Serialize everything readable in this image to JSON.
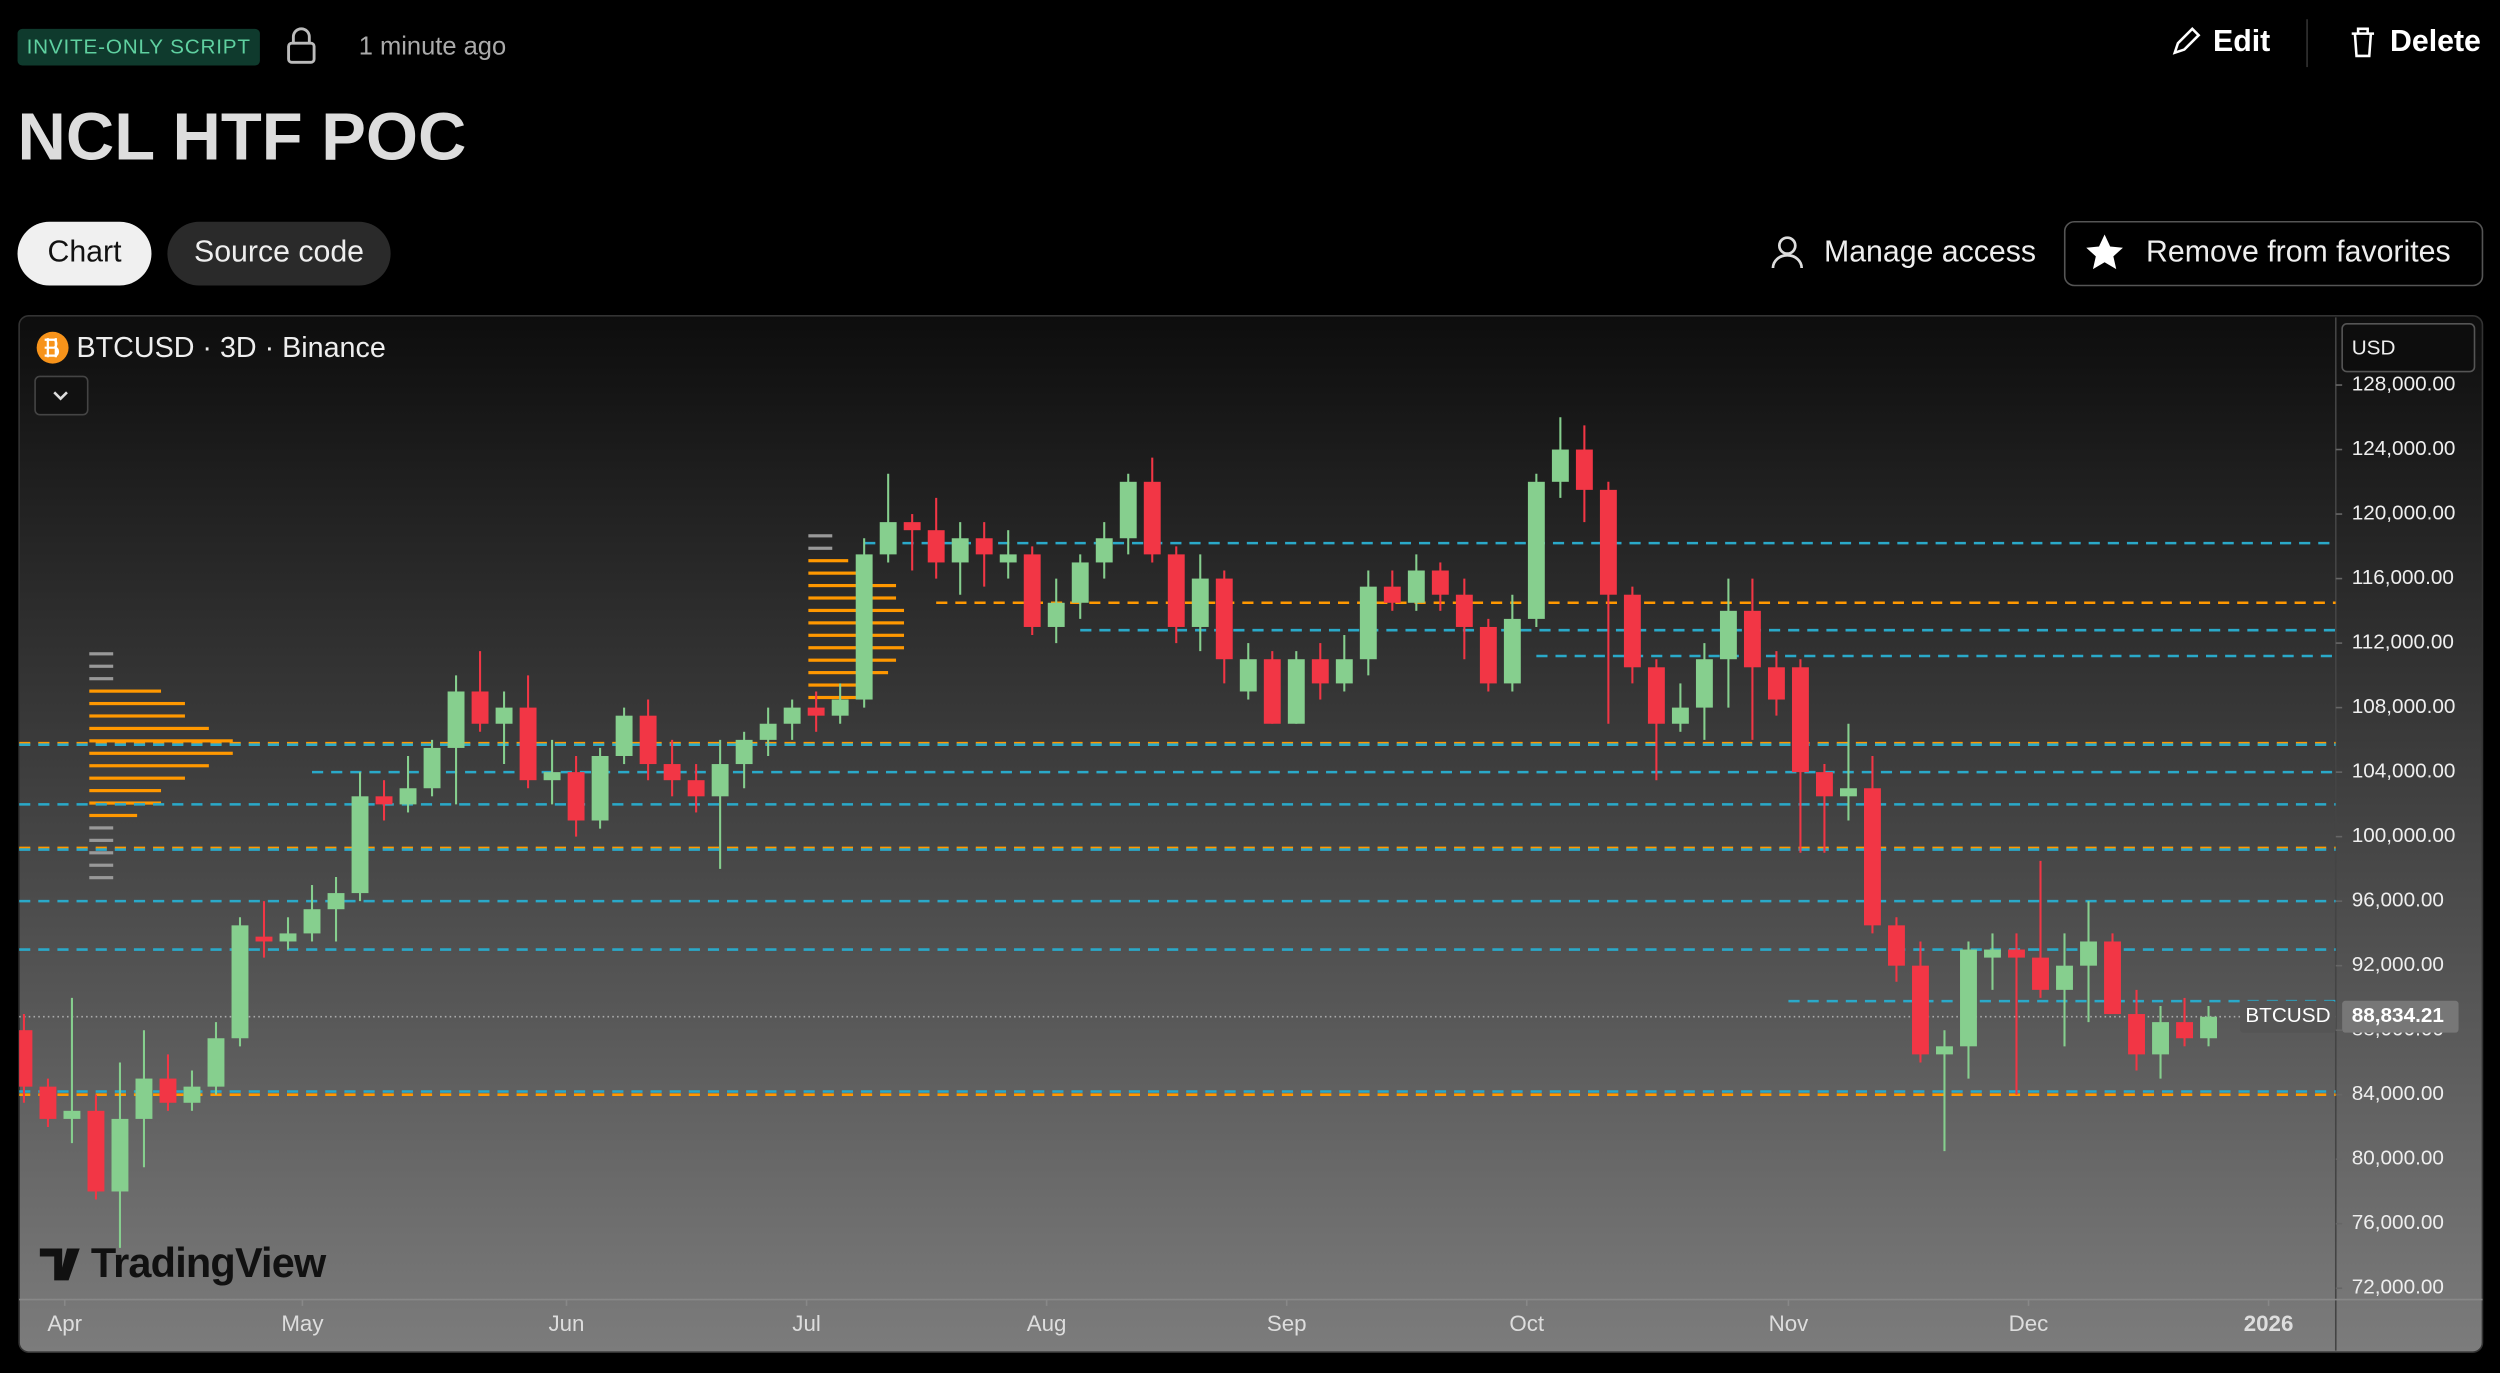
{
  "header": {
    "badge": "INVITE-ONLY SCRIPT",
    "time": "1 minute ago",
    "edit": "Edit",
    "delete": "Delete",
    "title": "NCL HTF POC"
  },
  "tabs": {
    "chart": "Chart",
    "source": "Source code"
  },
  "actions": {
    "manage": "Manage access",
    "favorite": "Remove from favorites"
  },
  "chart_data": {
    "type": "candlestick",
    "symbol": "BTCUSD · 3D · Binance",
    "currency": "USD",
    "watermark": "TradingView",
    "up_color": "#86cf8e",
    "down_color": "#f23645",
    "x": [
      0,
      1,
      2,
      3,
      4,
      5,
      6,
      7,
      8,
      9,
      10,
      11,
      12,
      13,
      14,
      15,
      16,
      17,
      18,
      19,
      20,
      21,
      22,
      23,
      24,
      25,
      26,
      27,
      28,
      29,
      30,
      31,
      32,
      33,
      34,
      35,
      36,
      37,
      38,
      39,
      40,
      41,
      42,
      43,
      44,
      45,
      46,
      47,
      48,
      49,
      50,
      51,
      52,
      53,
      54,
      55,
      56,
      57,
      58,
      59,
      60,
      61,
      62,
      63,
      64,
      65,
      66,
      67,
      68,
      69,
      70,
      71,
      72,
      73,
      74,
      75,
      76,
      77,
      78,
      79,
      80,
      81,
      82,
      83,
      84,
      85,
      86,
      87,
      88,
      89,
      90,
      91
    ],
    "open": [
      88000,
      84500,
      82500,
      83000,
      78000,
      82500,
      85000,
      83500,
      84500,
      87500,
      93800,
      93500,
      94000,
      95500,
      96500,
      102500,
      102000,
      103000,
      105500,
      109000,
      107000,
      108000,
      103500,
      104000,
      101000,
      105000,
      107500,
      104500,
      103500,
      102500,
      104500,
      106000,
      107000,
      108000,
      107500,
      108500,
      117500,
      119500,
      119000,
      117000,
      118500,
      117000,
      117500,
      113000,
      114500,
      117000,
      118500,
      122000,
      117500,
      113000,
      116000,
      109000,
      111000,
      107000,
      111000,
      109500,
      111000,
      115500,
      114500,
      116500,
      115000,
      113000,
      109500,
      113500,
      122000,
      124000,
      121500,
      115000,
      110500,
      107000,
      108000,
      111000,
      114000,
      110500,
      110500,
      104000,
      102500,
      103000,
      94500,
      92000,
      86500,
      87000,
      92500,
      93000,
      92500,
      90500,
      92000,
      93500,
      89000,
      86500,
      88500,
      87500
    ],
    "high": [
      89000,
      85000,
      90000,
      84000,
      86000,
      88000,
      86500,
      85500,
      88500,
      95000,
      96000,
      95000,
      97000,
      97500,
      104000,
      103500,
      105000,
      106000,
      110000,
      111500,
      109000,
      110000,
      106000,
      105000,
      105500,
      108000,
      108500,
      106000,
      104500,
      106000,
      106500,
      108000,
      108500,
      109000,
      109500,
      118500,
      122500,
      120000,
      121000,
      119500,
      119500,
      119000,
      118000,
      116000,
      117500,
      119500,
      122500,
      123500,
      118000,
      117500,
      116500,
      112000,
      111500,
      111500,
      112000,
      112500,
      116500,
      116500,
      117500,
      117000,
      116000,
      113500,
      115000,
      122500,
      126000,
      125500,
      122000,
      115500,
      111000,
      109500,
      112000,
      116000,
      116000,
      111500,
      111000,
      104500,
      107000,
      105000,
      95000,
      93500,
      88000,
      93500,
      94000,
      94000,
      98500,
      94000,
      96000,
      94000,
      90500,
      89500,
      90000,
      89500
    ],
    "low": [
      83500,
      82000,
      81000,
      77500,
      74500,
      79500,
      83000,
      83000,
      84000,
      87000,
      92500,
      93000,
      93500,
      93500,
      96000,
      101000,
      101500,
      102500,
      102000,
      106500,
      104500,
      103000,
      102000,
      100000,
      100500,
      104500,
      103500,
      102500,
      101500,
      98000,
      103000,
      105000,
      106000,
      106500,
      107000,
      108000,
      117000,
      116500,
      116000,
      115000,
      115500,
      116000,
      112500,
      112000,
      113500,
      116000,
      117500,
      117000,
      112000,
      111500,
      109500,
      108500,
      107000,
      107000,
      108500,
      109000,
      110000,
      114000,
      114000,
      114000,
      111000,
      109000,
      109000,
      113000,
      121000,
      119500,
      107000,
      109500,
      103500,
      106500,
      106000,
      108000,
      106000,
      107500,
      99000,
      99000,
      101000,
      94000,
      91000,
      86000,
      80500,
      85000,
      90500,
      84000,
      90000,
      87000,
      88500,
      89000,
      85500,
      85000,
      87000,
      87000
    ],
    "close": [
      84500,
      82500,
      83000,
      78000,
      82500,
      85000,
      83500,
      84500,
      87500,
      94500,
      93500,
      94000,
      95500,
      96500,
      102500,
      102000,
      103000,
      105500,
      109000,
      107000,
      108000,
      103500,
      104000,
      101000,
      105000,
      107500,
      104500,
      103500,
      102500,
      104500,
      106000,
      107000,
      108000,
      107500,
      108500,
      117500,
      119500,
      119000,
      117000,
      118500,
      117500,
      117500,
      113000,
      114500,
      117000,
      118500,
      122000,
      117500,
      113000,
      116000,
      111000,
      111000,
      107000,
      111000,
      109500,
      111000,
      115500,
      114500,
      116500,
      115000,
      113000,
      109500,
      113500,
      122000,
      124000,
      121500,
      115000,
      110500,
      107000,
      108000,
      111000,
      114000,
      110500,
      108500,
      104000,
      102500,
      103000,
      94500,
      92000,
      86500,
      87000,
      93000,
      93000,
      92500,
      90500,
      92000,
      93500,
      89000,
      86500,
      88500,
      87500,
      88834.21
    ],
    "levels": [
      {
        "value": 118200,
        "color": "#2aa9c9",
        "start": 35
      },
      {
        "value": 114500,
        "color": "#ff9800",
        "start": 38
      },
      {
        "value": 112800,
        "color": "#2aa9c9",
        "start": 44
      },
      {
        "value": 111200,
        "color": "#2aa9c9",
        "start": 63
      },
      {
        "value": 105800,
        "color": "#ff9800",
        "start": -0.2
      },
      {
        "value": 105700,
        "color": "#2aa9c9",
        "start": -0.2
      },
      {
        "value": 104000,
        "color": "#2aa9c9",
        "start": 12
      },
      {
        "value": 102000,
        "color": "#2aa9c9",
        "start": -0.2
      },
      {
        "value": 99300,
        "color": "#ff9800",
        "start": -0.2
      },
      {
        "value": 99200,
        "color": "#2aa9c9",
        "start": -0.2
      },
      {
        "value": 96000,
        "color": "#2aa9c9",
        "start": -0.2
      },
      {
        "value": 93000,
        "color": "#2aa9c9",
        "start": -0.2
      },
      {
        "value": 89800,
        "color": "#2aa9c9",
        "start": 73.5
      },
      {
        "value": 84200,
        "color": "#2aa9c9",
        "start": -0.2
      },
      {
        "value": 84000,
        "color": "#ff9800",
        "start": -0.2
      }
    ],
    "last_price": {
      "value": 88834.21,
      "label": "88,834.21"
    },
    "last_tag": "BTCUSD",
    "xlim": [
      -0.2,
      96.3
    ],
    "ylim": [
      71300,
      131600
    ],
    "xticks": [
      {
        "value": 1.7,
        "label": "Apr"
      },
      {
        "value": 11.6,
        "label": "May"
      },
      {
        "value": 22.6,
        "label": "Jun"
      },
      {
        "value": 32.6,
        "label": "Jul"
      },
      {
        "value": 42.6,
        "label": "Aug"
      },
      {
        "value": 52.6,
        "label": "Sep"
      },
      {
        "value": 62.6,
        "label": "Oct"
      },
      {
        "value": 73.5,
        "label": "Nov"
      },
      {
        "value": 83.5,
        "label": "Dec"
      },
      {
        "value": 93.5,
        "label": "2026"
      }
    ],
    "yticks": [
      {
        "value": 128000,
        "label": "128,000.00"
      },
      {
        "value": 124000,
        "label": "124,000.00"
      },
      {
        "value": 120000,
        "label": "120,000.00"
      },
      {
        "value": 116000,
        "label": "116,000.00"
      },
      {
        "value": 112000,
        "label": "112,000.00"
      },
      {
        "value": 108000,
        "label": "108,000.00"
      },
      {
        "value": 104000,
        "label": "104,000.00"
      },
      {
        "value": 100000,
        "label": "100,000.00"
      },
      {
        "value": 96000,
        "label": "96,000.00"
      },
      {
        "value": 92000,
        "label": "92,000.00"
      },
      {
        "value": 88000,
        "label": "88,000.00"
      },
      {
        "value": 84000,
        "label": "84,000.00"
      },
      {
        "value": 80000,
        "label": "80,000.00"
      },
      {
        "value": 76000,
        "label": "76,000.00"
      },
      {
        "value": 72000,
        "label": "72,000.00"
      }
    ]
  }
}
